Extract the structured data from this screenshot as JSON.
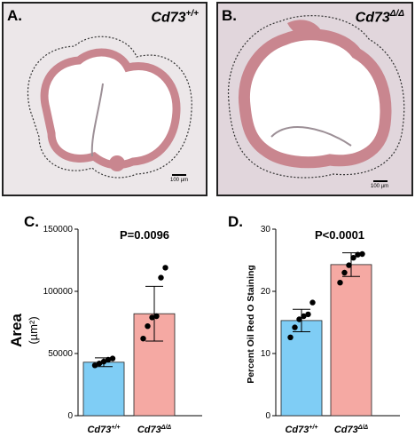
{
  "panels": {
    "a": {
      "label": "A.",
      "genotype": "Cd73",
      "genotype_sup": "+/+",
      "scale_bar": "100 µm"
    },
    "b": {
      "label": "B.",
      "genotype": "Cd73",
      "genotype_sup": "Δ/Δ",
      "scale_bar": "100 µm"
    },
    "c": {
      "label": "C."
    },
    "d": {
      "label": "D."
    }
  },
  "colors": {
    "blue_bar": "#7fcdf5",
    "pink_bar": "#f5a9a3",
    "dot": "#000000",
    "tissue": "#c9868f"
  },
  "chart_data": [
    {
      "type": "bar",
      "panel": "C",
      "title": "P=0.0096",
      "ylabel": "Area",
      "ylabel_unit": "(µm²)",
      "categories": [
        "Cd73+/+",
        "Cd73Δ/Δ"
      ],
      "tick_labels": [
        {
          "base": "Cd73",
          "sup": "+/+"
        },
        {
          "base": "Cd73",
          "sup": "Δ/Δ"
        }
      ],
      "values": [
        43000,
        82000
      ],
      "sd": [
        3500,
        22000
      ],
      "points": [
        [
          40500,
          42000,
          43500,
          45000,
          46000
        ],
        [
          62000,
          72000,
          79000,
          80000,
          111000,
          119000
        ]
      ],
      "ylim": [
        0,
        150000
      ],
      "yticks": [
        0,
        50000,
        100000,
        150000
      ],
      "ytick_labels": [
        "0",
        "50000",
        "100000",
        "150000"
      ],
      "grid": false,
      "legend": "none"
    },
    {
      "type": "bar",
      "panel": "D",
      "title": "P<0.0001",
      "ylabel": "Percent Oil Red O Staining",
      "categories": [
        "Cd73+/+",
        "Cd73Δ/Δ"
      ],
      "tick_labels": [
        {
          "base": "Cd73",
          "sup": "+/+"
        },
        {
          "base": "Cd73",
          "sup": "Δ/Δ"
        }
      ],
      "values": [
        15.3,
        24.3
      ],
      "sd": [
        1.8,
        1.9
      ],
      "points": [
        [
          12.6,
          14.2,
          15.5,
          16.0,
          16.3,
          18.2
        ],
        [
          21.4,
          23.0,
          24.2,
          25.4,
          25.9,
          26.0
        ]
      ],
      "ylim": [
        0,
        30
      ],
      "yticks": [
        0,
        10,
        20,
        30
      ],
      "ytick_labels": [
        "0",
        "10",
        "20",
        "30"
      ],
      "grid": false,
      "legend": "none"
    }
  ]
}
